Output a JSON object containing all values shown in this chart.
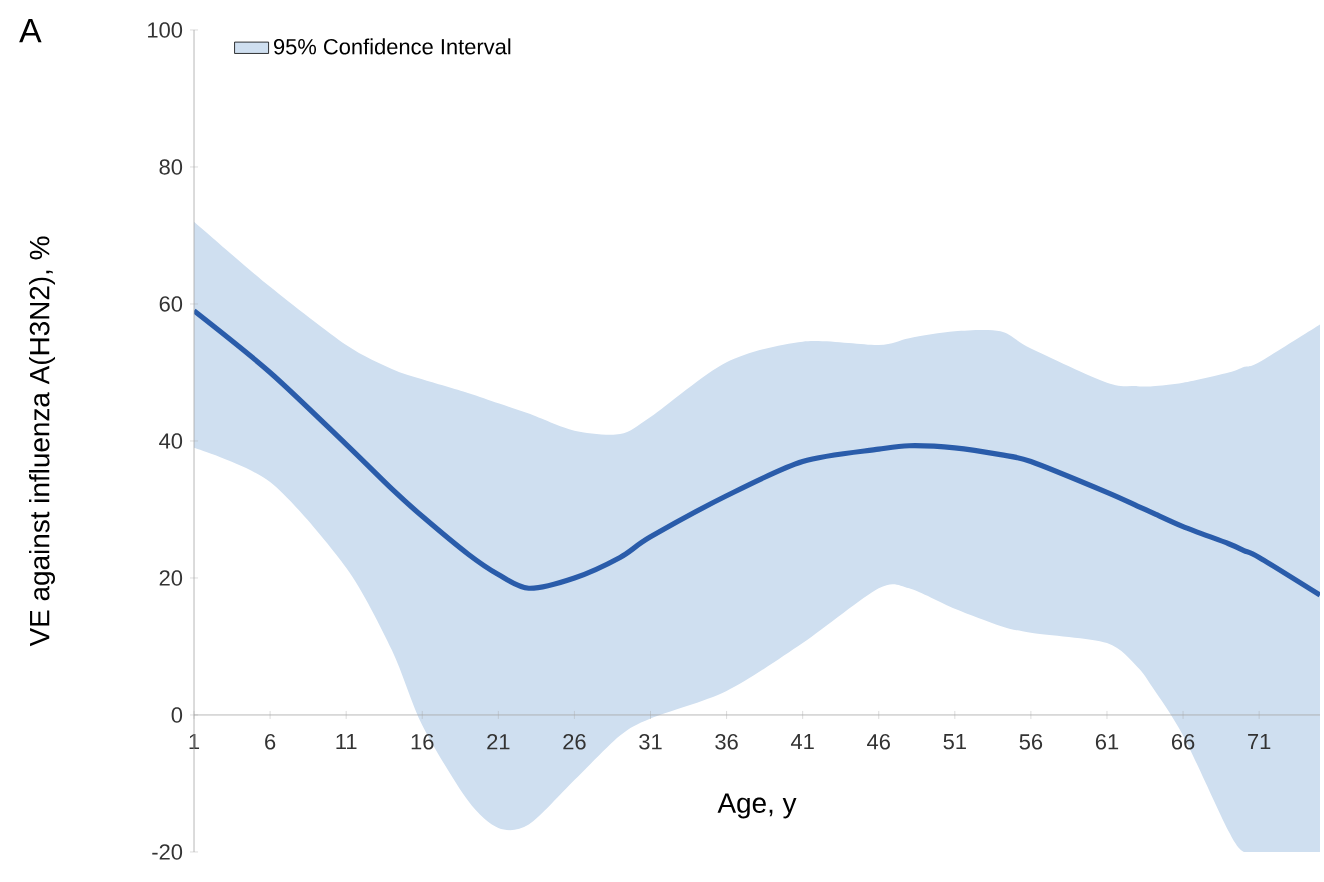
{
  "chart_data": {
    "type": "line",
    "xlabel": "Age, y",
    "ylabel": "VE against influenza A(H3N2), %",
    "annotations": [
      "A"
    ],
    "x": [
      1,
      6,
      11,
      14,
      16,
      19,
      21,
      23,
      26,
      29,
      31,
      36,
      41,
      46,
      48,
      51,
      54,
      56,
      61,
      63,
      64,
      66,
      69,
      70,
      71,
      75
    ],
    "series": [
      {
        "color": "#2a5caa",
        "values": [
          59,
          50,
          39.5,
          33,
          29,
          23.5,
          20.5,
          18.5,
          20,
          23,
          26,
          32,
          37,
          38.8,
          39.3,
          39,
          38,
          37,
          32.5,
          30.5,
          29.5,
          27.5,
          25,
          24,
          23,
          17.5
        ]
      },
      {
        "name": "95% Confidence Interval",
        "color": "#cfdff0",
        "type": "area",
        "values": [
          null,
          null,
          null,
          null,
          null,
          null,
          null,
          null,
          null,
          null,
          null,
          null,
          null,
          null,
          null,
          null,
          null,
          null,
          null,
          null,
          null,
          null,
          null,
          null,
          null,
          null
        ],
        "upper": [
          72,
          62.5,
          54,
          50.5,
          49,
          47,
          45.5,
          44,
          41.5,
          41,
          43.5,
          51.5,
          54.5,
          54,
          55,
          56,
          56,
          53.5,
          48.5,
          48,
          48,
          48.5,
          50,
          50.8,
          51.5,
          57
        ],
        "lower": [
          39,
          34,
          21.5,
          9.5,
          -1.5,
          -12.5,
          -16.5,
          -16,
          -9.5,
          -3,
          -0.5,
          3.5,
          10.5,
          18.5,
          18.5,
          15.5,
          13,
          12,
          10.5,
          7,
          4,
          -3,
          -17,
          -20,
          -20,
          -20
        ]
      }
    ],
    "xlim": [
      1,
      75
    ],
    "ylim": [
      -20,
      100
    ],
    "xticks": [
      1,
      6,
      11,
      16,
      21,
      26,
      31,
      36,
      41,
      46,
      51,
      56,
      61,
      66,
      71
    ],
    "yticks": [
      -20,
      0,
      20,
      40,
      60,
      80,
      100
    ],
    "grid": false,
    "legend": "top left",
    "marker": "none",
    "line_style": "solid"
  }
}
